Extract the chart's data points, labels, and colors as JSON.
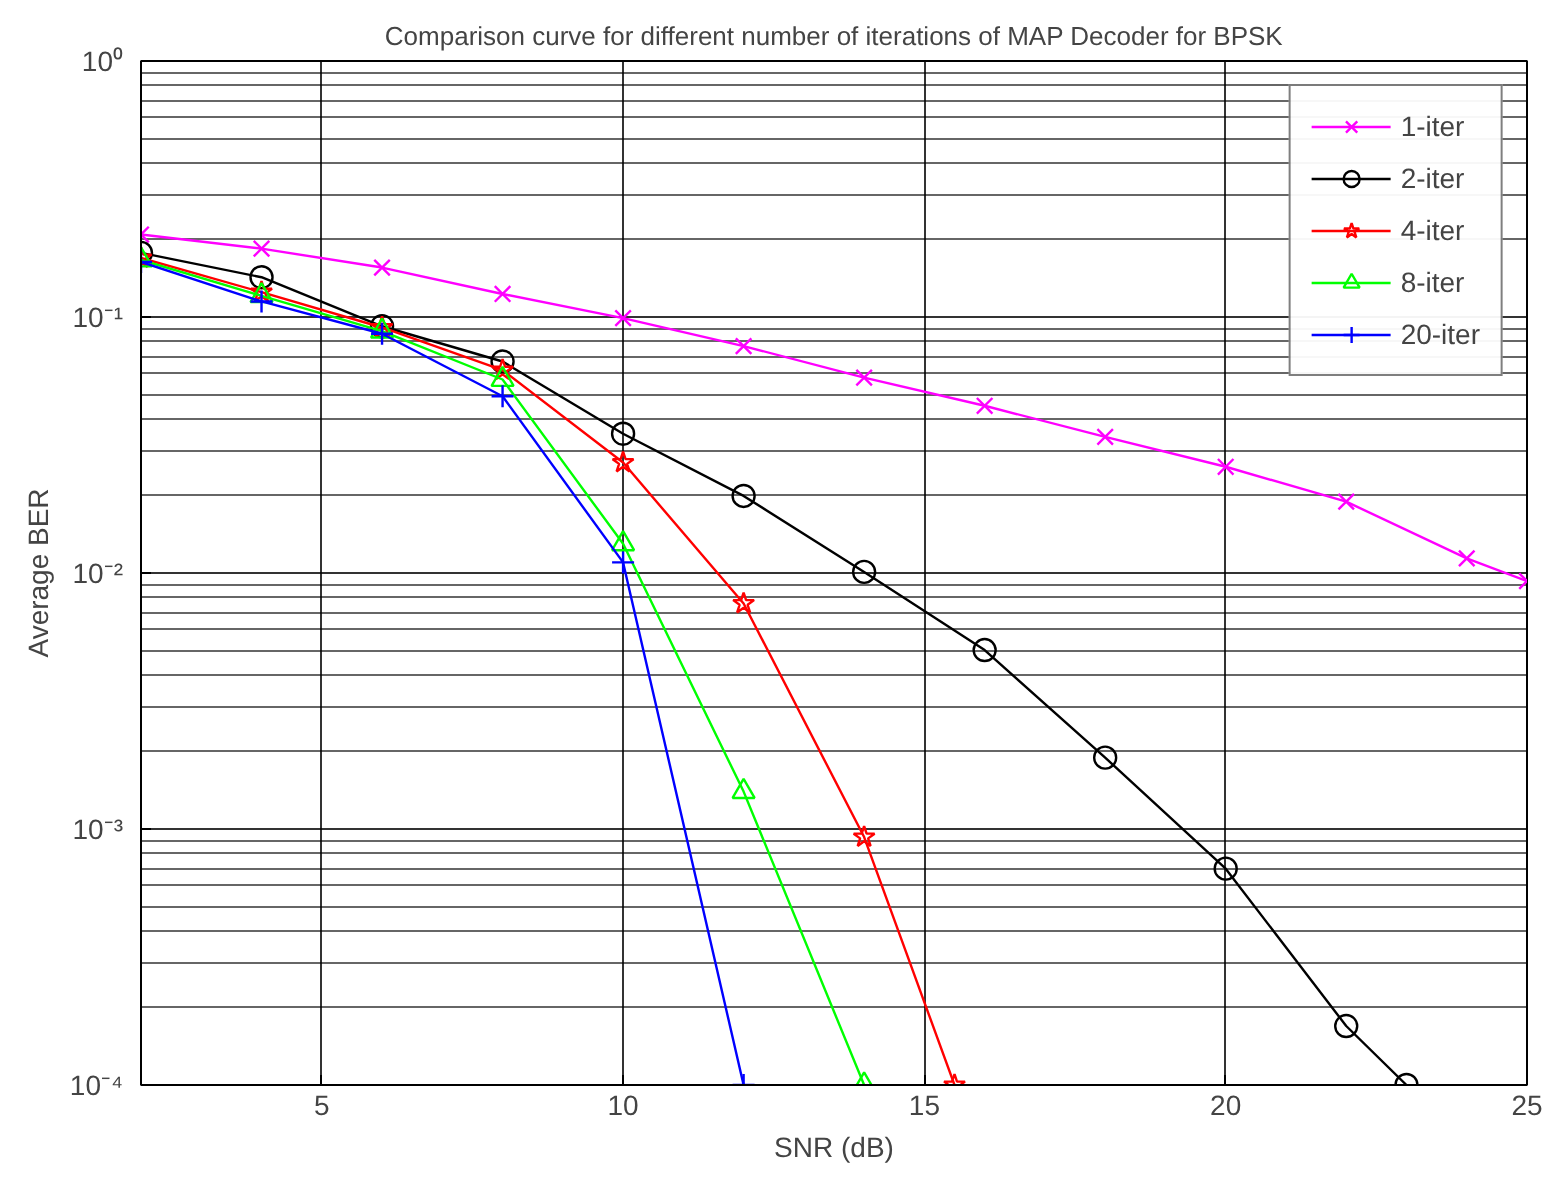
{
  "chart_data": {
    "type": "line",
    "title": "Comparison curve for different number of iterations of MAP Decoder for BPSK",
    "xlabel": "SNR (dB)",
    "ylabel": "Average BER",
    "log": "y",
    "grid": true,
    "legend": "top right",
    "xlim": [
      2,
      25
    ],
    "xticks": [
      5,
      10,
      15,
      20,
      25
    ],
    "ylim": [
      0.0001,
      1
    ],
    "yticks": [
      {
        "value": 0.0001,
        "label": "10⁻⁴"
      },
      {
        "value": 0.001,
        "label": "10⁻³"
      },
      {
        "value": 0.01,
        "label": "10⁻²"
      },
      {
        "value": 0.1,
        "label": "10⁻¹"
      },
      {
        "value": 1,
        "label": "10⁰"
      }
    ],
    "series": [
      {
        "name": "1-iter",
        "color": "#ff00ff",
        "marker": "x",
        "x": [
          2,
          4,
          6,
          8,
          10,
          12,
          14,
          16,
          18,
          20,
          22,
          24,
          25
        ],
        "values": [
          0.21,
          0.185,
          0.156,
          0.123,
          0.099,
          0.077,
          0.058,
          0.045,
          0.034,
          0.026,
          0.019,
          0.0114,
          0.0093
        ]
      },
      {
        "name": "2-iter",
        "color": "#000000",
        "marker": "circle",
        "x": [
          2,
          4,
          6,
          8,
          10,
          12,
          14,
          16,
          18,
          20,
          22,
          23
        ],
        "values": [
          0.178,
          0.143,
          0.092,
          0.067,
          0.035,
          0.02,
          0.0101,
          0.005,
          0.0019,
          0.0007,
          0.00017,
          0.0001
        ]
      },
      {
        "name": "4-iter",
        "color": "#ff0000",
        "marker": "star",
        "x": [
          2,
          4,
          6,
          8,
          10,
          12,
          14,
          15.5
        ],
        "values": [
          0.17,
          0.125,
          0.091,
          0.062,
          0.027,
          0.0076,
          0.00093,
          0.0001
        ]
      },
      {
        "name": "8-iter",
        "color": "#00ff00",
        "marker": "triangle",
        "x": [
          2,
          4,
          6,
          8,
          10,
          12,
          14
        ],
        "values": [
          0.167,
          0.121,
          0.088,
          0.057,
          0.013,
          0.0014,
          0.0001
        ]
      },
      {
        "name": "20-iter",
        "color": "#0000ff",
        "marker": "cross",
        "x": [
          2,
          4,
          6,
          8,
          10,
          12
        ],
        "values": [
          0.164,
          0.115,
          0.086,
          0.049,
          0.011,
          0.0001
        ]
      }
    ]
  }
}
